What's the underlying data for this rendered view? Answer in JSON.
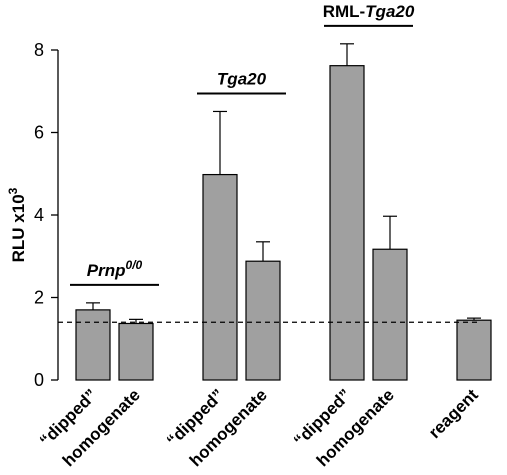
{
  "chart_data": {
    "type": "bar",
    "ylabel": "RLU x10",
    "ylabel_sup": "3",
    "ylim": [
      0,
      8
    ],
    "yticks": [
      "0",
      "2",
      "4",
      "6",
      "8"
    ],
    "categories": [
      "“dipped”",
      "homogenate",
      "“dipped”",
      "homogenate",
      "“dipped”",
      "homogenate",
      "reagent"
    ],
    "values": [
      1.7,
      1.37,
      4.98,
      2.88,
      7.62,
      3.17,
      1.45
    ],
    "errors": [
      0.17,
      0.1,
      1.53,
      0.47,
      0.53,
      0.8,
      0.05
    ],
    "reference_line": 1.4,
    "groups": [
      {
        "label": "Prnp",
        "sup": "0/0",
        "prefix": "",
        "italic": true,
        "bars": [
          0,
          1
        ]
      },
      {
        "label": "Tga20",
        "sup": "",
        "prefix": "",
        "italic": true,
        "bars": [
          2,
          3
        ]
      },
      {
        "label": "Tga20",
        "sup": "",
        "prefix": "RML-",
        "italic": true,
        "bars": [
          4,
          5
        ]
      }
    ],
    "colors": {
      "bar": "#a0a0a0",
      "stroke": "#000000"
    }
  }
}
